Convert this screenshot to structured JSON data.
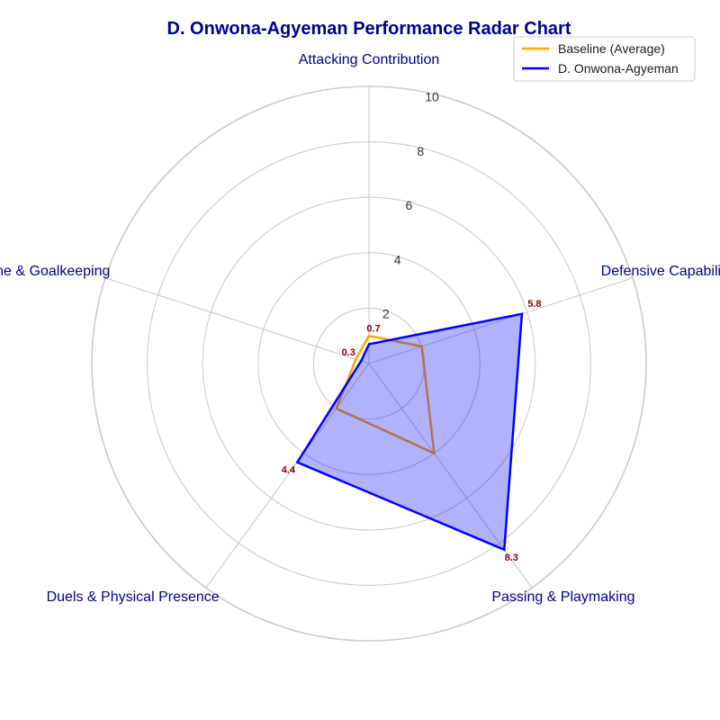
{
  "chart_data": {
    "type": "radar",
    "title": "D. Onwona-Agyeman Performance Radar Chart",
    "axes": [
      "Attacking Contribution",
      "Defensive Capability",
      "Passing & Playmaking",
      "Duels & Physical Presence",
      "Discipline & Goalkeeping"
    ],
    "radial_ticks": [
      2,
      4,
      6,
      8,
      10
    ],
    "rlim": [
      0,
      10
    ],
    "grid": true,
    "legend_position": "top-right",
    "series": [
      {
        "name": "Baseline (Average)",
        "values": [
          1.0,
          2.0,
          4.0,
          2.0,
          0.5
        ],
        "color": "#ffa500",
        "fill": "none"
      },
      {
        "name": "D. Onwona-Agyeman",
        "values": [
          0.7,
          5.8,
          8.3,
          4.4,
          0.3
        ],
        "color": "#0000ff",
        "fill": "#0000ff"
      }
    ],
    "data_labels": [
      "0.7",
      "5.8",
      "8.3",
      "4.4",
      "0.3"
    ],
    "colors": {
      "title": "#00008b",
      "axis_label": "#00008b",
      "data_label": "#8b0000",
      "grid": "#cccccc"
    }
  }
}
